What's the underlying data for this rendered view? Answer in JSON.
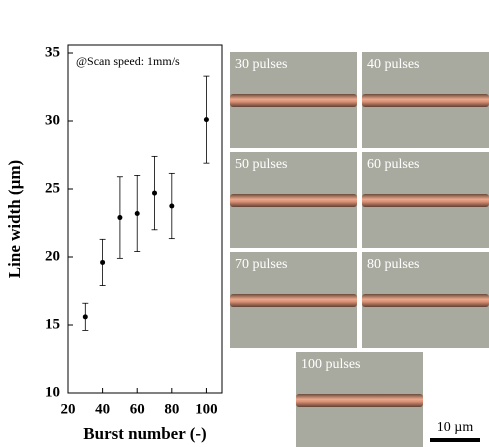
{
  "chart_data": {
    "type": "errorbar",
    "annotation": "@Scan speed: 1mm/s",
    "x_label": "Burst number (-)",
    "y_label": "Line width (µm)",
    "x": [
      30,
      40,
      50,
      60,
      70,
      80,
      100
    ],
    "series": [
      {
        "name": "Line width",
        "color": "#000000",
        "values": [
          15.6,
          19.6,
          22.9,
          23.2,
          24.7,
          23.75,
          30.1
        ],
        "errors": [
          1.0,
          1.7,
          3.0,
          2.8,
          2.7,
          2.4,
          3.2
        ]
      }
    ],
    "xlim": [
      20,
      109
    ],
    "xticks": [
      20,
      40,
      60,
      80,
      100
    ],
    "ylim": [
      10,
      35
    ],
    "yticks": [
      10,
      15,
      20,
      25,
      30,
      35
    ]
  },
  "panels": [
    "30 pulses",
    "40 pulses",
    "50 pulses",
    "60 pulses",
    "70 pulses",
    "80 pulses",
    "100 pulses"
  ],
  "scale_bar": "10 µm"
}
